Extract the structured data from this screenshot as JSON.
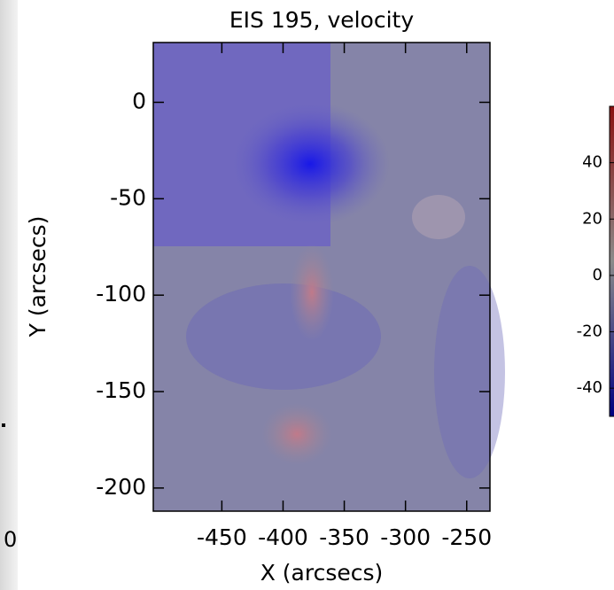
{
  "chart_data": {
    "type": "image",
    "title": "EIS 195, velocity",
    "x_label": "X (arcsecs)",
    "y_label": "Y (arcsecs)",
    "xlim": [
      -506,
      -231
    ],
    "xticks": [
      -450,
      -400,
      -350,
      -300,
      -250
    ],
    "ylim": [
      -212,
      31
    ],
    "yticks": [
      0,
      -50,
      -100,
      -150,
      -200
    ],
    "colorbar": {
      "clim": [
        -50,
        60
      ],
      "ticks": [
        40,
        20,
        0,
        -20,
        -40
      ],
      "colors": [
        "#000080",
        "#8a8a8a",
        "#8b1010"
      ]
    },
    "side_text": "0"
  }
}
